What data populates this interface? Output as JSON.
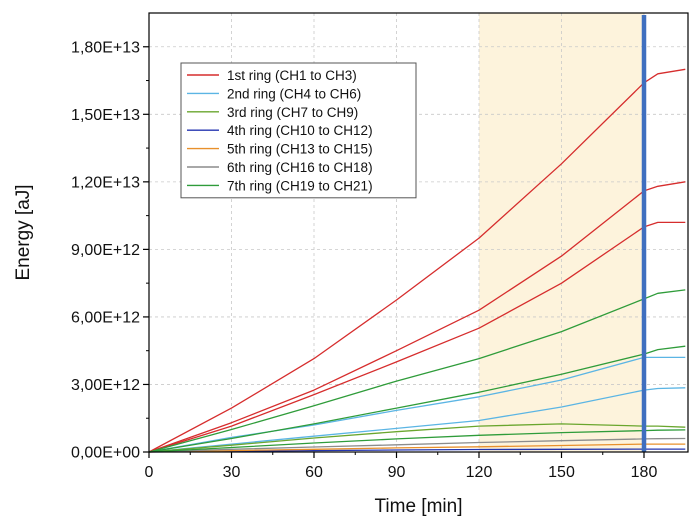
{
  "chart_data": {
    "type": "line",
    "title": "",
    "xlabel": "Time [min]",
    "ylabel": "Energy [aJ]",
    "xlim": [
      0,
      196
    ],
    "ylim": [
      0,
      19500000000000.0
    ],
    "x_ticks": [
      0,
      30,
      60,
      90,
      120,
      150,
      180
    ],
    "x_tick_labels": [
      "0",
      "30",
      "60",
      "90",
      "120",
      "150",
      "180"
    ],
    "y_ticks": [
      0,
      3000000000000.0,
      6000000000000.0,
      9000000000000.0,
      12000000000000.0,
      15000000000000.0,
      18000000000000.0
    ],
    "y_tick_labels": [
      "0,00E+00",
      "3,00E+12",
      "6,00E+12",
      "9,00E+12",
      "1,20E+13",
      "1,50E+13",
      "1,80E+13"
    ],
    "grid": true,
    "legend_position": "top-left",
    "highlight_band": {
      "x": [
        120,
        180
      ],
      "color": "#fdf3dc"
    },
    "vertical_marker": {
      "x": 180,
      "color": "#3f6fbf"
    },
    "series": [
      {
        "name": "1st ring (CH1 to CH3)",
        "color": "#d62d2d",
        "x": [
          0,
          30,
          60,
          90,
          120,
          150,
          180,
          185,
          195
        ],
        "y": [
          0,
          1950000000000.0,
          4150000000000.0,
          6750000000000.0,
          9500000000000.0,
          12800000000000.0,
          16400000000000.0,
          16800000000000.0,
          17000000000000.0
        ]
      },
      {
        "name": "1st ring (CH1 to CH3)",
        "color": "#d62d2d",
        "x": [
          0,
          30,
          60,
          90,
          120,
          150,
          180,
          185,
          195
        ],
        "y": [
          0,
          1300000000000.0,
          2750000000000.0,
          4500000000000.0,
          6300000000000.0,
          8700000000000.0,
          11600000000000.0,
          11800000000000.0,
          12000000000000.0
        ]
      },
      {
        "name": "1st ring (CH1 to CH3)",
        "color": "#d62d2d",
        "x": [
          0,
          30,
          60,
          90,
          120,
          150,
          180,
          185,
          195
        ],
        "y": [
          0,
          1150000000000.0,
          2550000000000.0,
          4000000000000.0,
          5500000000000.0,
          7500000000000.0,
          10000000000000.0,
          10200000000000.0,
          10200000000000.0
        ]
      },
      {
        "name": "2nd ring (CH4 to CH6)",
        "color": "#5bb5e4",
        "x": [
          0,
          30,
          60,
          90,
          120,
          150,
          180,
          185,
          195
        ],
        "y": [
          0,
          650000000000.0,
          1200000000000.0,
          1850000000000.0,
          2450000000000.0,
          3200000000000.0,
          4200000000000.0,
          4200000000000.0,
          4200000000000.0
        ]
      },
      {
        "name": "2nd ring (CH4 to CH6)",
        "color": "#5bb5e4",
        "x": [
          0,
          30,
          60,
          90,
          120,
          150,
          180,
          185,
          195
        ],
        "y": [
          0,
          350000000000.0,
          700000000000.0,
          1050000000000.0,
          1400000000000.0,
          2000000000000.0,
          2750000000000.0,
          2820000000000.0,
          2850000000000.0
        ]
      },
      {
        "name": "3rd ring (CH7 to CH9)",
        "color": "#6aa62e",
        "x": [
          0,
          30,
          60,
          90,
          120,
          150,
          180,
          185,
          195
        ],
        "y": [
          0,
          300000000000.0,
          620000000000.0,
          900000000000.0,
          1150000000000.0,
          1250000000000.0,
          1150000000000.0,
          1150000000000.0,
          1100000000000.0
        ]
      },
      {
        "name": "4th ring (CH10 to CH12)",
        "color": "#2435b0",
        "x": [
          0,
          30,
          60,
          90,
          120,
          150,
          180,
          185,
          195
        ],
        "y": [
          0,
          30000000000.0,
          60000000000.0,
          90000000000.0,
          110000000000.0,
          120000000000.0,
          130000000000.0,
          130000000000.0,
          130000000000.0
        ]
      },
      {
        "name": "5th ring (CH13 to CH15)",
        "color": "#e8902b",
        "x": [
          0,
          30,
          60,
          90,
          120,
          150,
          180,
          185,
          195
        ],
        "y": [
          0,
          60000000000.0,
          120000000000.0,
          180000000000.0,
          230000000000.0,
          290000000000.0,
          350000000000.0,
          350000000000.0,
          350000000000.0
        ]
      },
      {
        "name": "6th ring (CH16 to CH18)",
        "color": "#8c8c8c",
        "x": [
          0,
          30,
          60,
          90,
          120,
          150,
          180,
          185,
          195
        ],
        "y": [
          0,
          120000000000.0,
          220000000000.0,
          320000000000.0,
          420000000000.0,
          500000000000.0,
          580000000000.0,
          590000000000.0,
          600000000000.0
        ]
      },
      {
        "name": "7th ring (CH19 to CH21)",
        "color": "#2f9c3a",
        "x": [
          0,
          30,
          60,
          90,
          120,
          150,
          180,
          185,
          195
        ],
        "y": [
          0,
          1000000000000.0,
          2050000000000.0,
          3150000000000.0,
          4150000000000.0,
          5350000000000.0,
          6800000000000.0,
          7050000000000.0,
          7200000000000.0
        ]
      },
      {
        "name": "7th ring (CH19 to CH21)",
        "color": "#2f9c3a",
        "x": [
          0,
          30,
          60,
          90,
          120,
          150,
          180,
          185,
          195
        ],
        "y": [
          0,
          600000000000.0,
          1250000000000.0,
          1950000000000.0,
          2650000000000.0,
          3450000000000.0,
          4350000000000.0,
          4550000000000.0,
          4700000000000.0
        ]
      },
      {
        "name": "7th ring (CH19 to CH21)",
        "color": "#2f9c3a",
        "x": [
          0,
          30,
          60,
          90,
          120,
          150,
          180,
          185,
          195
        ],
        "y": [
          0,
          200000000000.0,
          400000000000.0,
          580000000000.0,
          740000000000.0,
          860000000000.0,
          950000000000.0,
          970000000000.0,
          980000000000.0
        ]
      }
    ],
    "legend": [
      {
        "label": "1st ring (CH1 to CH3)",
        "color": "#d62d2d"
      },
      {
        "label": "2nd ring (CH4 to CH6)",
        "color": "#5bb5e4"
      },
      {
        "label": "3rd ring (CH7 to CH9)",
        "color": "#6aa62e"
      },
      {
        "label": "4th ring (CH10 to CH12)",
        "color": "#2435b0"
      },
      {
        "label": "5th ring (CH13 to CH15)",
        "color": "#e8902b"
      },
      {
        "label": "6th ring (CH16 to CH18)",
        "color": "#8c8c8c"
      },
      {
        "label": "7th ring (CH19 to CH21)",
        "color": "#2f9c3a"
      }
    ]
  }
}
